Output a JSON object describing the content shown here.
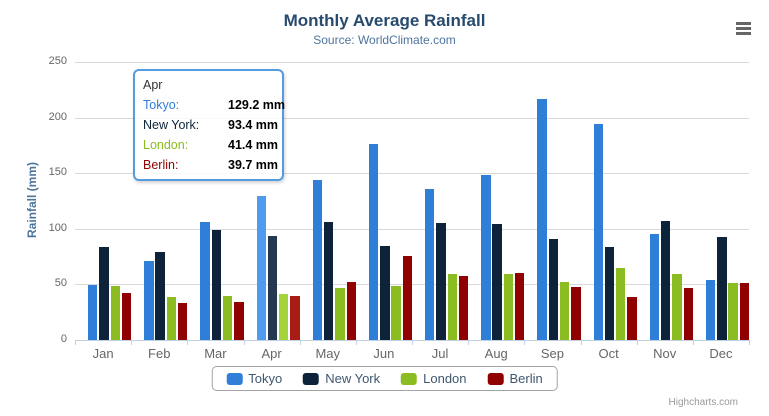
{
  "chart": {
    "title": "Monthly Average Rainfall",
    "subtitle": "Source: WorldClimate.com",
    "credits": "Highcharts.com"
  },
  "chart_data": {
    "type": "bar",
    "title": "Monthly Average Rainfall",
    "subtitle": "Source: WorldClimate.com",
    "categories": [
      "Jan",
      "Feb",
      "Mar",
      "Apr",
      "May",
      "Jun",
      "Jul",
      "Aug",
      "Sep",
      "Oct",
      "Nov",
      "Dec"
    ],
    "series": [
      {
        "name": "Tokyo",
        "color": "#2f7ed8",
        "hover_color": "#4e9bf0",
        "values": [
          49.9,
          71.5,
          106.4,
          129.2,
          144.0,
          176.0,
          135.6,
          148.5,
          216.4,
          194.1,
          95.6,
          54.4
        ]
      },
      {
        "name": "New York",
        "color": "#0d233a",
        "hover_color": "#24394f",
        "values": [
          83.6,
          78.8,
          98.5,
          93.4,
          106.0,
          84.5,
          105.0,
          104.3,
          91.2,
          83.5,
          106.6,
          92.3
        ]
      },
      {
        "name": "London",
        "color": "#8bbc21",
        "hover_color": "#a3d43c",
        "values": [
          48.9,
          38.8,
          39.3,
          41.4,
          47.0,
          48.3,
          59.0,
          59.6,
          52.4,
          65.2,
          59.3,
          51.2
        ]
      },
      {
        "name": "Berlin",
        "color": "#910000",
        "hover_color": "#a81c16",
        "values": [
          42.4,
          33.2,
          34.5,
          39.7,
          52.6,
          75.5,
          57.4,
          60.4,
          47.6,
          39.1,
          46.8,
          51.1
        ]
      }
    ],
    "xlabel": "",
    "ylabel": "Rainfall (mm)",
    "ylim": [
      0,
      250
    ],
    "yticks": [
      0,
      50,
      100,
      150,
      200,
      250
    ],
    "grid": true,
    "legend_position": "bottom",
    "hovered_category": "Apr"
  },
  "tooltip": {
    "header": "Apr",
    "border_color": "#559be0",
    "rows": [
      {
        "label": "Tokyo:",
        "value": "129.2 mm",
        "color": "#2f7ed8"
      },
      {
        "label": "New York:",
        "value": "93.4 mm",
        "color": "#0d233a"
      },
      {
        "label": "London:",
        "value": "41.4 mm",
        "color": "#8bbc21"
      },
      {
        "label": "Berlin:",
        "value": "39.7 mm",
        "color": "#910000"
      }
    ]
  }
}
